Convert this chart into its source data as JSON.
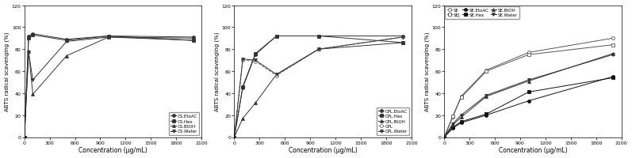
{
  "panel1": {
    "xlabel": "Concentration (μg/mL)",
    "ylabel": "ABTS radical scavenging (%)",
    "xlim": [
      0,
      2100
    ],
    "ylim": [
      0,
      120
    ],
    "xticks": [
      0,
      300,
      600,
      900,
      1200,
      1500,
      1800,
      2100
    ],
    "yticks": [
      0,
      20,
      40,
      60,
      80,
      100,
      120
    ],
    "series": [
      {
        "label": "CS.EtoAC",
        "x": [
          0,
          50,
          100,
          500,
          1000,
          2000
        ],
        "y": [
          0,
          92,
          94,
          89,
          92,
          91
        ],
        "color": "#333333",
        "marker": "o",
        "linestyle": "-",
        "markerfacecolor": "#333333"
      },
      {
        "label": "CS.Hex",
        "x": [
          0,
          50,
          100,
          500,
          1000,
          2000
        ],
        "y": [
          0,
          90,
          93,
          88,
          92,
          88
        ],
        "color": "#333333",
        "marker": "s",
        "linestyle": "-",
        "markerfacecolor": "#333333"
      },
      {
        "label": "CS.BtOH",
        "x": [
          0,
          50,
          100,
          500,
          1000,
          2000
        ],
        "y": [
          0,
          78,
          39,
          74,
          91,
          90
        ],
        "color": "#333333",
        "marker": "^",
        "linestyle": "-",
        "markerfacecolor": "#333333"
      },
      {
        "label": "CS.Water",
        "x": [
          0,
          50,
          100,
          500,
          1000,
          2000
        ],
        "y": [
          0,
          77,
          52,
          87,
          91,
          88
        ],
        "color": "#333333",
        "marker": "v",
        "linestyle": "-",
        "markerfacecolor": "#333333"
      }
    ],
    "legend_loc": "lower right"
  },
  "panel2": {
    "xlabel": "Concentration (μg/mL)",
    "ylabel": "ABTS radical scavenging (%)",
    "xlim": [
      0,
      2100
    ],
    "ylim": [
      0,
      120
    ],
    "xticks": [
      0,
      300,
      600,
      900,
      1200,
      1500,
      1800,
      2100
    ],
    "yticks": [
      0,
      20,
      40,
      60,
      80,
      100,
      120
    ],
    "series": [
      {
        "label": "CPL.EtoAC",
        "x": [
          0,
          100,
          250,
          500,
          1000,
          2000
        ],
        "y": [
          0,
          45,
          75,
          92,
          92,
          92
        ],
        "color": "#333333",
        "marker": "o",
        "linestyle": "-",
        "markerfacecolor": "#333333"
      },
      {
        "label": "CPL.Hex",
        "x": [
          0,
          100,
          250,
          500,
          1000,
          2000
        ],
        "y": [
          0,
          46,
          76,
          92,
          92,
          86
        ],
        "color": "#333333",
        "marker": "s",
        "linestyle": "-",
        "markerfacecolor": "#333333"
      },
      {
        "label": "CPL.BtOH",
        "x": [
          0,
          100,
          250,
          500,
          1000,
          2000
        ],
        "y": [
          0,
          17,
          31,
          57,
          80,
          86
        ],
        "color": "#333333",
        "marker": "^",
        "linestyle": "-",
        "markerfacecolor": "#333333"
      },
      {
        "label": "CPL",
        "x": [
          0,
          100,
          250,
          500,
          1000,
          2000
        ],
        "y": [
          0,
          70,
          69,
          56,
          80,
          91
        ],
        "color": "#666666",
        "marker": "o",
        "linestyle": "--",
        "markerfacecolor": "white"
      },
      {
        "label": "CPL.Water",
        "x": [
          0,
          100,
          250,
          500,
          1000,
          2000
        ],
        "y": [
          0,
          71,
          70,
          57,
          80,
          91
        ],
        "color": "#333333",
        "marker": "v",
        "linestyle": "-",
        "markerfacecolor": "#333333"
      }
    ],
    "legend_loc": "lower right"
  },
  "panel3": {
    "xlabel": "Concentration (μg/mL)",
    "ylabel": "ABTS radical scavenging (%)",
    "xlim": [
      0,
      2100
    ],
    "ylim": [
      0,
      120
    ],
    "xticks": [
      0,
      300,
      600,
      900,
      1200,
      1500,
      1800,
      2100
    ],
    "yticks": [
      0,
      20,
      40,
      60,
      80,
      100,
      120
    ],
    "series": [
      {
        "label": "SE",
        "x": [
          0,
          100,
          200,
          500,
          1000,
          2000
        ],
        "y": [
          0,
          18,
          37,
          61,
          77,
          90
        ],
        "color": "#555555",
        "marker": "o",
        "linestyle": "-",
        "markerfacecolor": "white"
      },
      {
        "label": "SEJ",
        "x": [
          0,
          100,
          200,
          500,
          1000,
          2000
        ],
        "y": [
          0,
          19,
          36,
          60,
          75,
          84
        ],
        "color": "#555555",
        "marker": "s",
        "linestyle": "-",
        "markerfacecolor": "white"
      },
      {
        "label": "SE.EtoAC",
        "x": [
          0,
          100,
          200,
          500,
          1000,
          2000
        ],
        "y": [
          0,
          8,
          13,
          20,
          33,
          55
        ],
        "color": "#111111",
        "marker": "o",
        "linestyle": "-",
        "markerfacecolor": "#111111"
      },
      {
        "label": "SE.Hex",
        "x": [
          0,
          100,
          200,
          500,
          1000,
          2000
        ],
        "y": [
          0,
          9,
          14,
          21,
          41,
          54
        ],
        "color": "#111111",
        "marker": "s",
        "linestyle": "-",
        "markerfacecolor": "#111111"
      },
      {
        "label": "SE.BtOH",
        "x": [
          0,
          100,
          200,
          500,
          1000,
          2000
        ],
        "y": [
          0,
          11,
          18,
          37,
          51,
          76
        ],
        "color": "#333333",
        "marker": "^",
        "linestyle": "-",
        "markerfacecolor": "#333333"
      },
      {
        "label": "SE.Water",
        "x": [
          0,
          100,
          200,
          500,
          1000,
          2000
        ],
        "y": [
          0,
          12,
          20,
          38,
          52,
          75
        ],
        "color": "#333333",
        "marker": "v",
        "linestyle": "-",
        "markerfacecolor": "#333333"
      }
    ],
    "legend_loc": "upper left",
    "legend_ncol": 3
  }
}
